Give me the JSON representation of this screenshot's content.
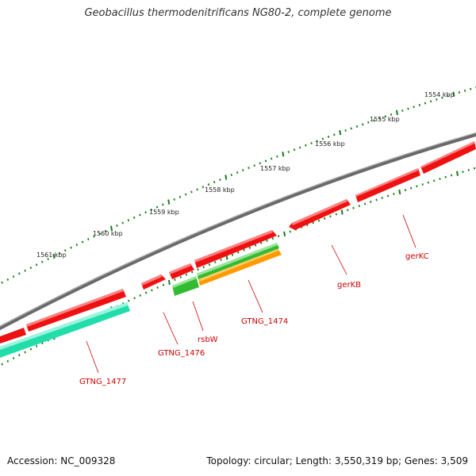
{
  "title": "Geobacillus thermodenitrificans NG80-2, complete genome",
  "footer": {
    "accession": "Accession: NC_009328",
    "summary": "Topology: circular; Length: 3,550,319 bp; Genes: 3,509"
  },
  "colors": {
    "backbone": "#8a8a8a",
    "tick": "#1a7a1a",
    "forward_gene": "#ee1111",
    "reverse_gene_green": "#33bb33",
    "reverse_gene_teal": "#22ddaa",
    "reverse_gene_orange": "#ff9900",
    "label": "#cc0000"
  },
  "scale_ticks": [
    {
      "label": "1554 kbp"
    },
    {
      "label": "1555 kbp"
    },
    {
      "label": "1556 kbp"
    },
    {
      "label": "1557 kbp"
    },
    {
      "label": "1558 kbp"
    },
    {
      "label": "1559 kbp"
    },
    {
      "label": "1560 kbp"
    },
    {
      "label": "1561 kbp"
    }
  ],
  "gene_labels": [
    {
      "name": "gerKC"
    },
    {
      "name": "gerKB"
    },
    {
      "name": "GTNG_1474"
    },
    {
      "name": "rsbW"
    },
    {
      "name": "GTNG_1476"
    },
    {
      "name": "GTNG_1477"
    }
  ]
}
